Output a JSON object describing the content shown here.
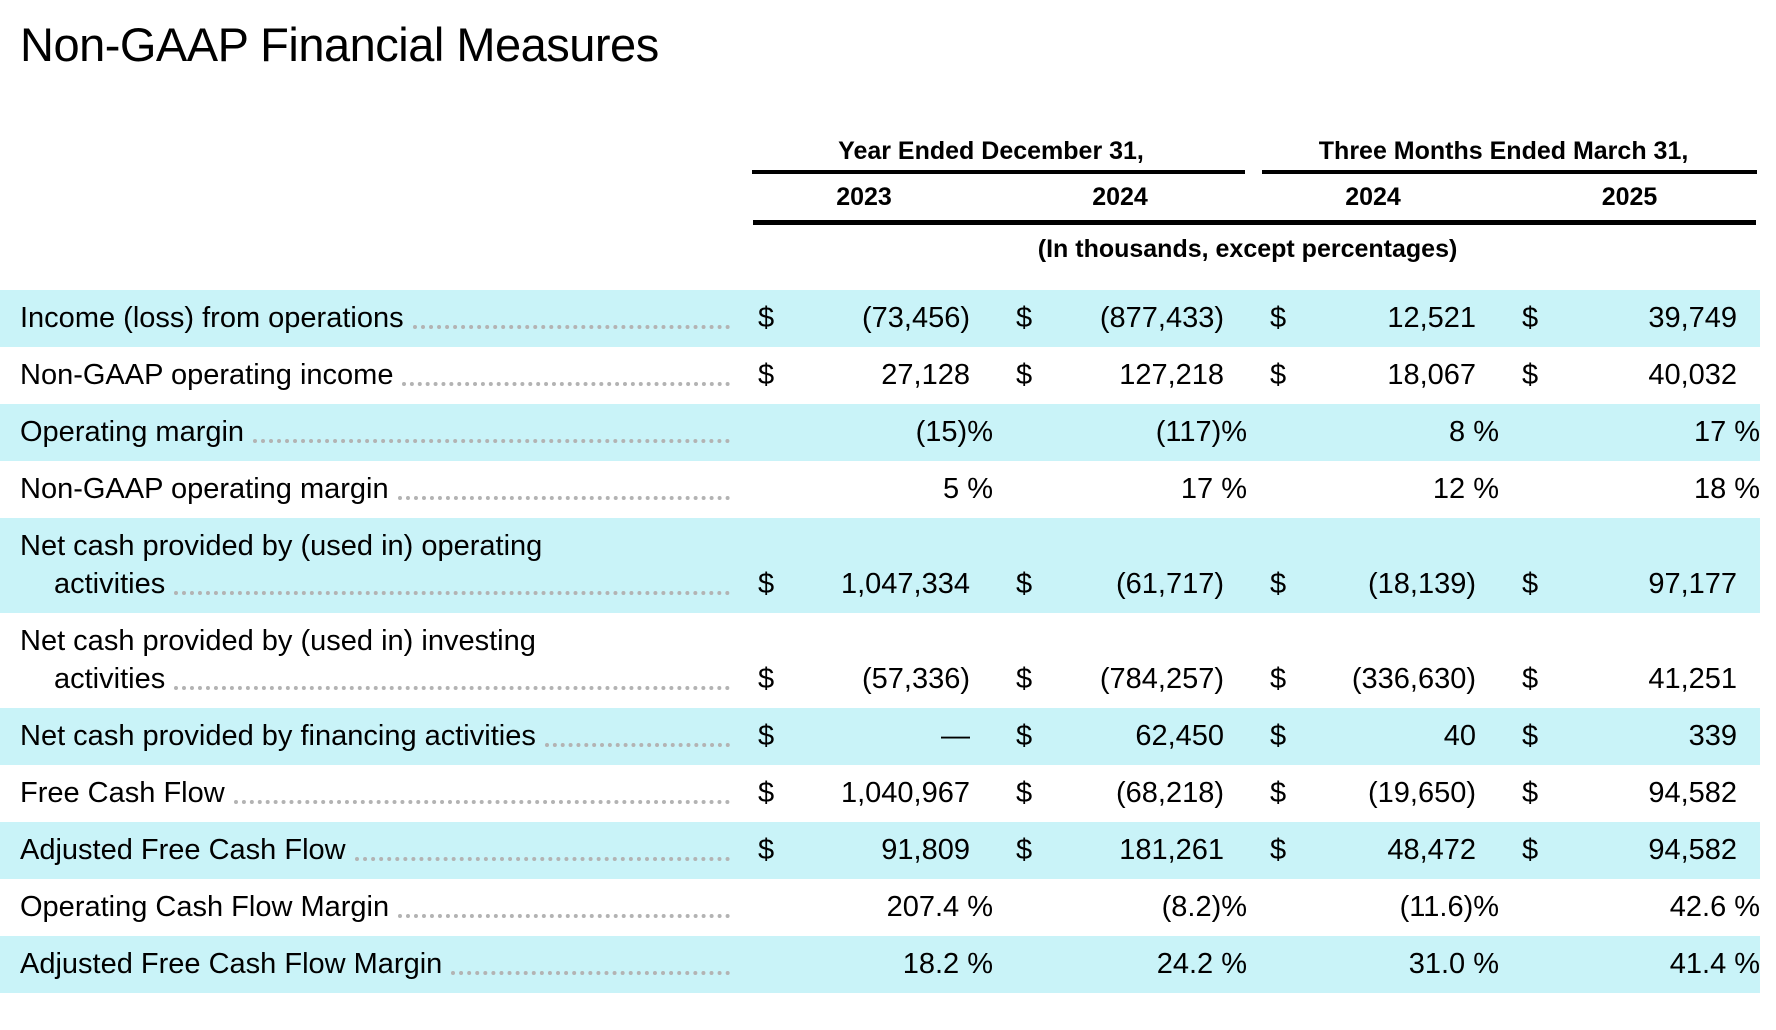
{
  "page": {
    "title": "Non-GAAP Financial Measures"
  },
  "table": {
    "col_groups": [
      {
        "label": "Year Ended December 31,",
        "years": [
          "2023",
          "2024"
        ]
      },
      {
        "label": "Three Months Ended March 31,",
        "years": [
          "2024",
          "2025"
        ]
      }
    ],
    "units_note": "(In thousands, except percentages)",
    "currency_symbol": "$",
    "colors": {
      "row_highlight": "#c9f3f8",
      "rule": "#000000",
      "leader_dots": "#b3b3b3"
    },
    "rows": [
      {
        "label_lines": [
          "Income (loss) from operations"
        ],
        "dollar": true,
        "shaded": true,
        "values": [
          "(73,456)",
          "(877,433)",
          "12,521",
          "39,749"
        ]
      },
      {
        "label_lines": [
          "Non-GAAP operating income"
        ],
        "dollar": true,
        "shaded": false,
        "values": [
          "27,128",
          "127,218",
          "18,067",
          "40,032"
        ]
      },
      {
        "label_lines": [
          "Operating margin"
        ],
        "dollar": false,
        "shaded": true,
        "values": [
          "(15)%",
          "(117)%",
          "8 %",
          "17 %"
        ]
      },
      {
        "label_lines": [
          "Non-GAAP operating margin"
        ],
        "dollar": false,
        "shaded": false,
        "values": [
          "5 %",
          "17 %",
          "12 %",
          "18 %"
        ]
      },
      {
        "label_lines": [
          "Net cash provided by (used in) operating",
          "activities"
        ],
        "dollar": true,
        "shaded": true,
        "values": [
          "1,047,334",
          "(61,717)",
          "(18,139)",
          "97,177"
        ]
      },
      {
        "label_lines": [
          "Net cash provided by (used in) investing",
          "activities"
        ],
        "dollar": true,
        "shaded": false,
        "values": [
          "(57,336)",
          "(784,257)",
          "(336,630)",
          "41,251"
        ]
      },
      {
        "label_lines": [
          "Net cash provided by financing activities"
        ],
        "dollar": true,
        "shaded": true,
        "values": [
          "—",
          "62,450",
          "40",
          "339"
        ]
      },
      {
        "label_lines": [
          "Free Cash Flow"
        ],
        "dollar": true,
        "shaded": false,
        "values": [
          "1,040,967",
          "(68,218)",
          "(19,650)",
          "94,582"
        ]
      },
      {
        "label_lines": [
          "Adjusted Free Cash Flow"
        ],
        "dollar": true,
        "shaded": true,
        "values": [
          "91,809",
          "181,261",
          "48,472",
          "94,582"
        ]
      },
      {
        "label_lines": [
          "Operating Cash Flow Margin"
        ],
        "dollar": false,
        "shaded": false,
        "values": [
          "207.4 %",
          "(8.2)%",
          "(11.6)%",
          "42.6 %"
        ]
      },
      {
        "label_lines": [
          "Adjusted Free Cash Flow Margin"
        ],
        "dollar": false,
        "shaded": true,
        "values": [
          "18.2 %",
          "24.2 %",
          "31.0 %",
          "41.4 %"
        ]
      }
    ]
  }
}
